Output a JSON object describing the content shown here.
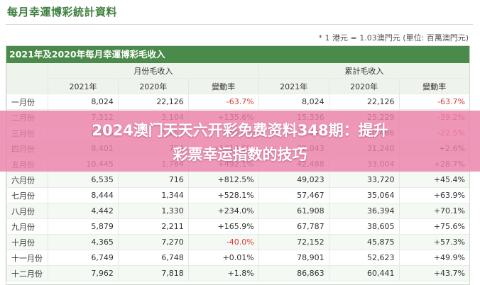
{
  "page": {
    "title": "每月幸運博彩統計資料",
    "note": "* 1 港元 = 1.03澳門元 (單位: 百萬澳門元)"
  },
  "table": {
    "title": "2021年及2020年每月幸運博彩毛收入",
    "group_headers": [
      "月份毛收入",
      "累計毛收入"
    ],
    "sub_headers": [
      "2021年",
      "2020年",
      "變動率",
      "2021年",
      "2020年",
      "變動率"
    ],
    "rows": [
      {
        "month": "一月份",
        "m2021": "8,024",
        "m2020": "22,126",
        "mchg": "-63.7%",
        "c2021": "8,024",
        "c2020": "22,126",
        "cchg": "-63.7%"
      },
      {
        "month": "二月份",
        "m2021": "7,312",
        "m2020": "3,104",
        "mchg": "+135.6%",
        "c2021": "15,336",
        "c2020": "25,229",
        "cchg": "-39.2%"
      },
      {
        "month": "三月份",
        "m2021": "8,306",
        "m2020": "5,257",
        "mchg": "+58.0%",
        "c2021": "23,642",
        "c2020": "30,486",
        "cchg": "-22.5%"
      },
      {
        "month": "四月份",
        "m2021": "8,401",
        "m2020": "754",
        "mchg": "+1014.5%",
        "c2021": "32,043",
        "c2020": "31,240",
        "cchg": "+2.6%"
      },
      {
        "month": "五月份",
        "m2021": "10,445",
        "m2020": "1,764",
        "mchg": "+492.1%",
        "c2021": "42,488",
        "c2020": "33,004",
        "cchg": "+28.7%"
      },
      {
        "month": "六月份",
        "m2021": "6,535",
        "m2020": "716",
        "mchg": "+812.5%",
        "c2021": "49,023",
        "c2020": "33,720",
        "cchg": "+45.4%"
      },
      {
        "month": "七月份",
        "m2021": "8,444",
        "m2020": "1,344",
        "mchg": "+528.1%",
        "c2021": "57,467",
        "c2020": "35,064",
        "cchg": "+63.9%"
      },
      {
        "month": "八月份",
        "m2021": "4,442",
        "m2020": "1,330",
        "mchg": "+234.0%",
        "c2021": "61,908",
        "c2020": "36,394",
        "cchg": "+70.1%"
      },
      {
        "month": "九月份",
        "m2021": "5,879",
        "m2020": "2,211",
        "mchg": "+165.9%",
        "c2021": "67,787",
        "c2020": "38,605",
        "cchg": "+75.6%"
      },
      {
        "month": "十月份",
        "m2021": "4,365",
        "m2020": "7,270",
        "mchg": "-40.0%",
        "c2021": "72,152",
        "c2020": "45,875",
        "cchg": "+57.3%"
      },
      {
        "month": "十一月份",
        "m2021": "6,749",
        "m2020": "6,748",
        "mchg": "+0.01%",
        "c2021": "78,901",
        "c2020": "52,623",
        "cchg": "+49.9%"
      },
      {
        "month": "十二月份",
        "m2021": "7,962",
        "m2020": "7,818",
        "mchg": "+1.8%",
        "c2021": "86,863",
        "c2020": "60,441",
        "cchg": "+43.7%"
      }
    ]
  },
  "overlay": {
    "line1": "2024澳门天天六开彩免费资料348期：提升",
    "line2": "彩票幸运指数的技巧"
  },
  "colors": {
    "header_green": "#4a8a4a",
    "title_green": "#3f7f3f",
    "negative_red": "#d23c3c",
    "overlay_pink": "#ec80a8"
  }
}
